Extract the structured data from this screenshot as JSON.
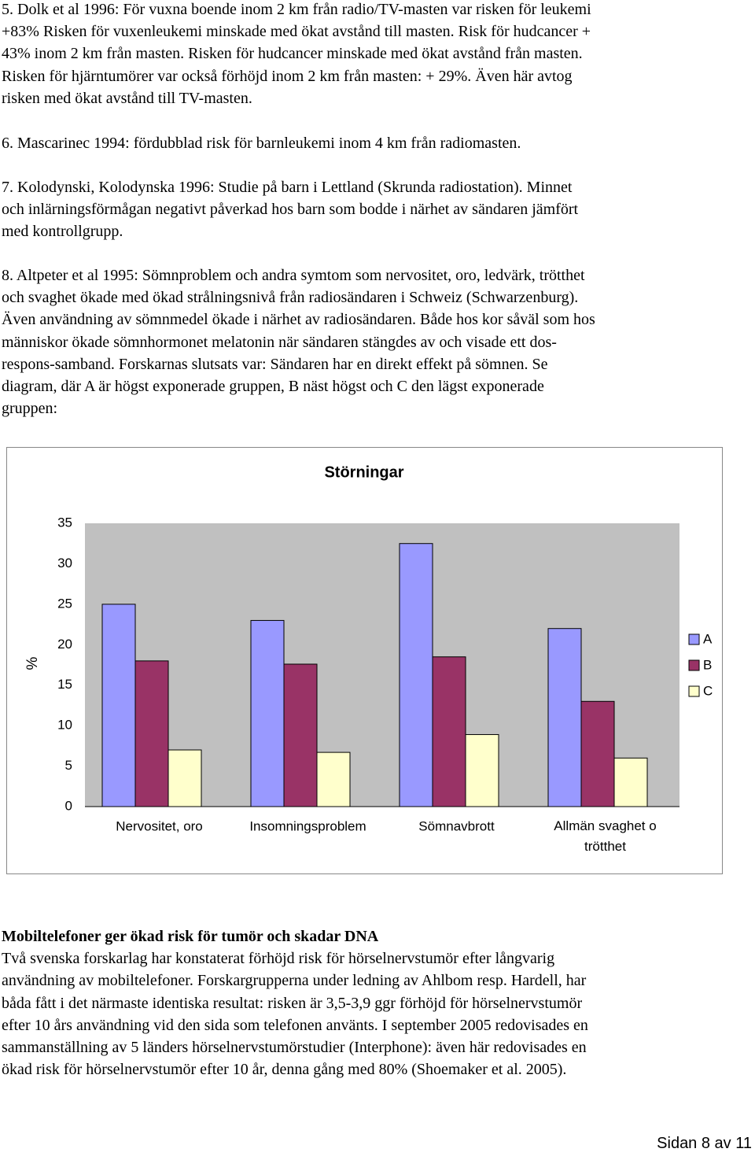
{
  "paragraphs": [
    {
      "lines": [
        "5. Dolk et al 1996: För vuxna boende inom 2 km från radio/TV-masten var risken för leukemi",
        "+83% Risken för vuxenleukemi minskade med ökat avstånd till masten. Risk för hudcancer +",
        "43% inom 2 km från masten. Risken för hudcancer minskade med ökat avstånd från masten.",
        "Risken för hjärntumörer var också förhöjd inom 2 km från masten: + 29%. Även här avtog",
        "risken med ökat avstånd till TV-masten."
      ]
    },
    {
      "lines": [
        "6. Mascarinec 1994: fördubblad risk för barnleukemi inom 4 km från radiomasten."
      ]
    },
    {
      "lines": [
        "7. Kolodynski, Kolodynska 1996: Studie på barn i Lettland (Skrunda radiostation). Minnet",
        "och inlärningsförmågan negativt påverkad hos barn som bodde i närhet av sändaren jämfört",
        "med kontrollgrupp."
      ]
    },
    {
      "lines": [
        "8. Altpeter et al 1995: Sömnproblem och andra symtom som nervositet, oro, ledvärk, trötthet",
        "och svaghet ökade med ökad strålningsnivå från radiosändaren i Schweiz (Schwarzenburg).",
        "Även användning av sömnmedel ökade i närhet av radiosändaren. Både hos kor såväl som hos",
        "människor ökade sömnhormonet melatonin när sändaren stängdes av och visade ett dos-",
        "respons-samband. Forskarnas slutsats var: Sändaren har en direkt effekt på sömnen. Se",
        "diagram, där A är högst exponerade gruppen, B näst högst och C den lägst exponerade",
        "gruppen:"
      ]
    }
  ],
  "chart_data": {
    "type": "bar",
    "title": "Störningar",
    "y_label": "%",
    "categories": [
      "Nervositet, oro",
      "Insomningsproblem",
      "Sömnavbrott",
      "Allmän svaghet o trötthet"
    ],
    "series": [
      {
        "name": "A",
        "color": "#9999ff",
        "values": [
          25,
          23,
          32.5,
          22
        ]
      },
      {
        "name": "B",
        "color": "#993366",
        "values": [
          18,
          17.6,
          18.5,
          13
        ]
      },
      {
        "name": "C",
        "color": "#ffffcc",
        "values": [
          7,
          6.7,
          8.9,
          6
        ]
      }
    ],
    "ylim": [
      0,
      35
    ],
    "yticks": [
      0,
      5,
      10,
      15,
      20,
      25,
      30,
      35
    ],
    "legend": "right",
    "plot_background": "#c0c0c0"
  },
  "section": {
    "heading": "Mobiltelefoner ger ökad risk för tumör och skadar DNA",
    "lines": [
      "Två svenska forskarlag har konstaterat förhöjd risk för hörselnervstumör efter långvarig",
      "användning av mobiltelefoner. Forskargrupperna under ledning av Ahlbom resp. Hardell, har",
      "båda fått i det närmaste identiska resultat: risken är 3,5-3,9 ggr förhöjd för hörselnervstumör",
      "efter 10 års användning vid den sida som telefonen använts. I september 2005 redovisades en",
      "sammanställning av 5 länders hörselnervstumörstudier (Interphone): även här redovisades en",
      "ökad risk för hörselnervstumör efter 10 år, denna gång med 80% (Shoemaker et al. 2005)."
    ]
  },
  "footer": "Sidan 8 av 11"
}
